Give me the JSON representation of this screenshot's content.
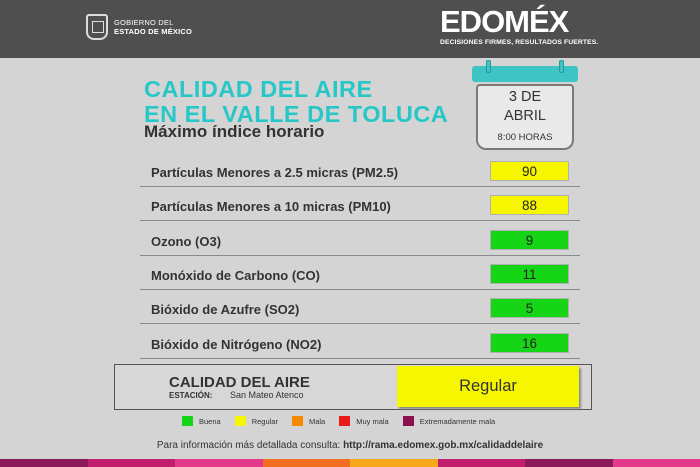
{
  "header": {
    "gov_line1": "GOBIERNO DEL",
    "gov_line2": "ESTADO DE MÉXICO",
    "brand": "EDOMÉX",
    "tagline": "DECISIONES FIRMES, RESULTADOS FUERTES."
  },
  "title": {
    "line1": "CALIDAD DEL AIRE",
    "line2": "EN EL VALLE DE TOLUCA",
    "subtitle": "Máximo índice horario"
  },
  "calendar": {
    "date_line1": "3 DE",
    "date_line2": "ABRIL",
    "time": "8:00 HORAS"
  },
  "pollutants": [
    {
      "label": "Partículas Menores a 2.5 micras (PM2.5)",
      "value": "90",
      "color": "#f6f600"
    },
    {
      "label": "Partículas Menores a 10 micras (PM10)",
      "value": "88",
      "color": "#f6f600"
    },
    {
      "label": "Ozono (O3)",
      "value": "9",
      "color": "#16d416"
    },
    {
      "label": "Monóxido de Carbono (CO)",
      "value": "11",
      "color": "#16d416"
    },
    {
      "label": "Bióxido de Azufre (SO2)",
      "value": "5",
      "color": "#16d416"
    },
    {
      "label": "Bióxido de Nitrógeno (NO2)",
      "value": "16",
      "color": "#16d416"
    }
  ],
  "summary": {
    "title": "CALIDAD DEL AIRE",
    "station_label": "ESTACIÓN:",
    "station": "San Mateo Atenco",
    "status": "Regular",
    "status_color": "#f6f600"
  },
  "legend": [
    {
      "label": "Buena",
      "color": "#16d416"
    },
    {
      "label": "Regular",
      "color": "#f6f600"
    },
    {
      "label": "Mala",
      "color": "#f58a00"
    },
    {
      "label": "Muy mala",
      "color": "#ea1a1a"
    },
    {
      "label": "Extremadamente mala",
      "color": "#8a1050"
    }
  ],
  "footer": {
    "text": "Para información más detallada consulta:",
    "url": "http://rama.edomex.gob.mx/calidaddelaire"
  },
  "brand_strip_colors": [
    "#8a1a5a",
    "#c21e6e",
    "#e33a8c",
    "#f26f21",
    "#f7a81b",
    "#c21e6e",
    "#8a1a5a",
    "#e33a8c"
  ]
}
